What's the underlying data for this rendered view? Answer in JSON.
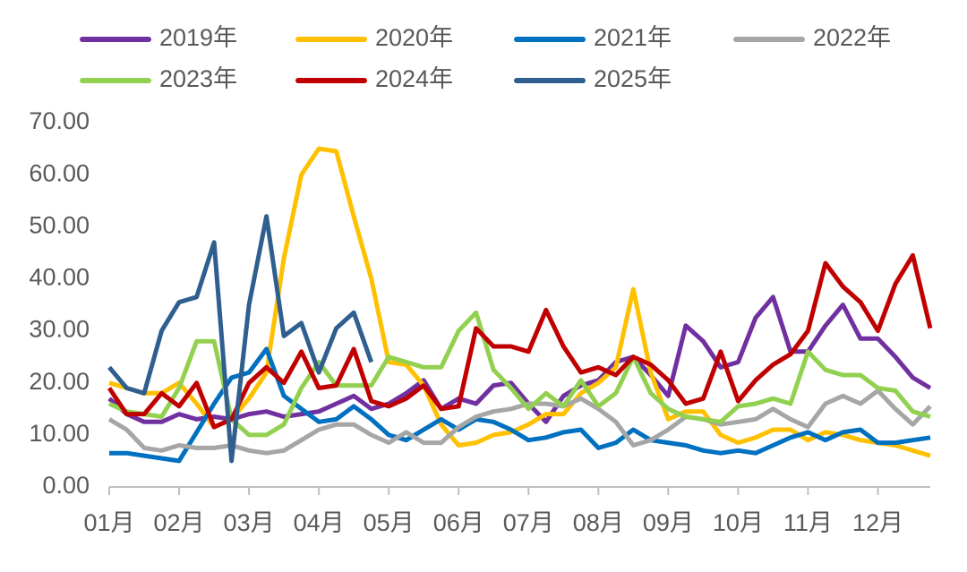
{
  "chart_data": {
    "type": "line",
    "categories": [
      "01月",
      null,
      null,
      null,
      "02月",
      null,
      null,
      null,
      "03月",
      null,
      null,
      null,
      "04月",
      null,
      null,
      null,
      "05月",
      null,
      null,
      null,
      "06月",
      null,
      null,
      null,
      "07月",
      null,
      null,
      null,
      "08月",
      null,
      null,
      null,
      "09月",
      null,
      null,
      null,
      "10月",
      null,
      null,
      null,
      "11月",
      null,
      null,
      null,
      "12月",
      null,
      null,
      null
    ],
    "ylim": [
      0,
      70
    ],
    "yticks": [
      {
        "value": 0,
        "label": "0.00"
      },
      {
        "value": 10,
        "label": "10.00"
      },
      {
        "value": 20,
        "label": "20.00"
      },
      {
        "value": 30,
        "label": "30.00"
      },
      {
        "value": 40,
        "label": "40.00"
      },
      {
        "value": 50,
        "label": "50.00"
      },
      {
        "value": 60,
        "label": "60.00"
      },
      {
        "value": 70,
        "label": "70.00"
      }
    ],
    "legend": "top",
    "series": [
      {
        "name": "2019年",
        "color": "#7030a0",
        "values": [
          17,
          14,
          12.5,
          12.5,
          14,
          13,
          13.5,
          13,
          14,
          14.5,
          13.5,
          14,
          14.5,
          16,
          17.5,
          15,
          16,
          18,
          20.5,
          15,
          17,
          16,
          19.5,
          20,
          16,
          12.5,
          17.5,
          19.5,
          20.5,
          24,
          25,
          21.5,
          17.5,
          31,
          28,
          23,
          24,
          32.5,
          36.5,
          26,
          26,
          31,
          35,
          28.5,
          28.5,
          25,
          21,
          19
        ]
      },
      {
        "name": "2020年",
        "color": "#ffc000",
        "values": [
          20,
          19,
          18,
          18,
          20,
          16,
          11.5,
          13,
          17,
          22,
          44,
          60,
          65,
          64.5,
          52,
          40,
          24,
          23.5,
          19.5,
          12,
          8,
          8.5,
          10,
          10.5,
          12,
          14,
          14,
          18,
          20,
          23,
          38,
          22,
          13,
          14.5,
          14.5,
          10,
          8.5,
          9.5,
          11,
          11,
          9,
          10.5,
          10,
          9,
          8.5,
          8,
          7,
          6
        ]
      },
      {
        "name": "2021年",
        "color": "#0070c0",
        "values": [
          6.5,
          6.5,
          6,
          5.5,
          5,
          10.5,
          16,
          21,
          22,
          26.5,
          17.5,
          15,
          12.5,
          13,
          15.5,
          13,
          10,
          9,
          11,
          13,
          11,
          13,
          12.5,
          11,
          9,
          9.5,
          10.5,
          11,
          7.5,
          8.5,
          11,
          9,
          8.5,
          8,
          7,
          6.5,
          7,
          6.5,
          8,
          9.5,
          10.5,
          9,
          10.5,
          11,
          8.5,
          8.5,
          9,
          9.5
        ]
      },
      {
        "name": "2022年",
        "color": "#a6a6a6",
        "values": [
          13,
          11,
          7.5,
          7,
          8,
          7.5,
          7.5,
          8,
          7,
          6.5,
          7,
          9,
          11,
          12,
          12,
          10,
          8.5,
          10.5,
          8.5,
          8.5,
          11.5,
          13.5,
          14.5,
          15,
          16,
          16,
          15.5,
          17,
          15,
          12.5,
          8,
          9,
          11,
          13.5,
          13,
          12,
          12.5,
          13,
          15,
          13,
          11.5,
          16,
          17.5,
          16,
          18.5,
          15,
          12,
          15.5
        ]
      },
      {
        "name": "2023年",
        "color": "#92d050",
        "values": [
          16,
          14.5,
          14,
          13.5,
          19,
          28,
          28,
          13,
          10,
          10,
          12,
          19,
          24,
          19.5,
          19.5,
          19.5,
          25,
          24,
          23,
          23,
          30,
          33.5,
          22.5,
          19,
          15,
          18,
          15.5,
          20.5,
          15.5,
          18,
          25,
          18,
          15,
          13.5,
          13,
          12.5,
          15.5,
          16,
          17,
          16,
          26,
          22.5,
          21.5,
          21.5,
          19,
          18.5,
          14.5,
          13.5
        ]
      },
      {
        "name": "2024年",
        "color": "#c00000",
        "values": [
          19,
          14,
          14,
          18,
          15.5,
          20,
          11.5,
          13,
          20,
          23,
          20,
          26,
          19,
          19.5,
          26.5,
          16.5,
          15.5,
          17,
          19.5,
          15,
          15.5,
          30.5,
          27,
          27,
          26,
          34,
          27,
          22,
          23,
          21.5,
          25,
          23.5,
          20.5,
          16,
          17,
          26,
          16.5,
          20.5,
          23.5,
          25.5,
          30,
          43,
          38.5,
          35.5,
          30,
          39,
          44.5,
          30.5
        ]
      },
      {
        "name": "2025年",
        "color": "#2f5f8f",
        "values": [
          23,
          19,
          18,
          30,
          35.5,
          36.5,
          47,
          5,
          35,
          52,
          29,
          31.5,
          22,
          30.5,
          33.5,
          24,
          null,
          null,
          null,
          null,
          null,
          null,
          null,
          null,
          null,
          null,
          null,
          null,
          null,
          null,
          null,
          null,
          null,
          null,
          null,
          null,
          null,
          null,
          null,
          null,
          null,
          null,
          null,
          null,
          null,
          null,
          null,
          null
        ]
      }
    ]
  }
}
